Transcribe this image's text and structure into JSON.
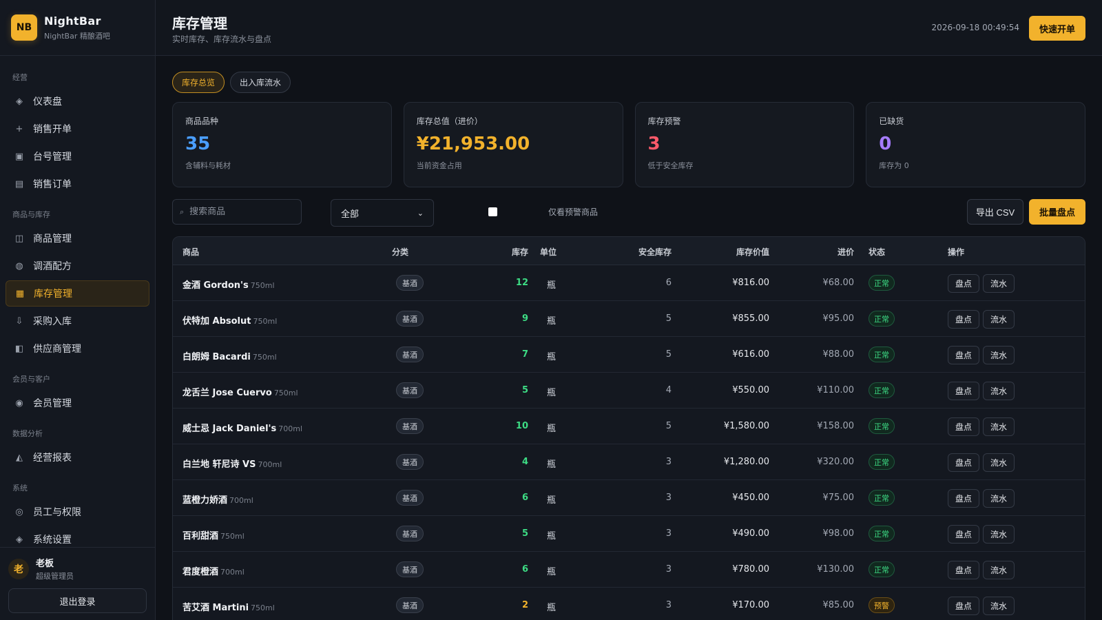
{
  "brand": {
    "logo": "NB",
    "name": "NightBar",
    "subtitle": "NightBar 精酿酒吧"
  },
  "sidebar": {
    "sections": [
      {
        "title": "经营",
        "items": [
          {
            "label": "仪表盘",
            "icon": "diamond-icon",
            "glyph": "◈"
          },
          {
            "label": "销售开单",
            "icon": "plus-icon",
            "glyph": "+"
          },
          {
            "label": "台号管理",
            "icon": "table-square-icon",
            "glyph": "▣"
          },
          {
            "label": "销售订单",
            "icon": "list-icon",
            "glyph": "▤"
          }
        ]
      },
      {
        "title": "商品与库存",
        "items": [
          {
            "label": "商品管理",
            "icon": "box-icon",
            "glyph": "◫"
          },
          {
            "label": "调酒配方",
            "icon": "mix-icon",
            "glyph": "◍"
          },
          {
            "label": "库存管理",
            "icon": "grid-icon",
            "glyph": "▦",
            "active": true
          },
          {
            "label": "采购入库",
            "icon": "download-icon",
            "glyph": "⇩"
          },
          {
            "label": "供应商管理",
            "icon": "supplier-icon",
            "glyph": "◧"
          }
        ]
      },
      {
        "title": "会员与客户",
        "items": [
          {
            "label": "会员管理",
            "icon": "member-icon",
            "glyph": "◉"
          }
        ]
      },
      {
        "title": "数据分析",
        "items": [
          {
            "label": "经营报表",
            "icon": "chart-icon",
            "glyph": "◭"
          }
        ]
      },
      {
        "title": "系统",
        "items": [
          {
            "label": "员工与权限",
            "icon": "staff-icon",
            "glyph": "◎"
          },
          {
            "label": "系统设置",
            "icon": "settings-icon",
            "glyph": "◈"
          }
        ]
      }
    ]
  },
  "user": {
    "avatar": "老",
    "name": "老板",
    "role": "超级管理员",
    "logout": "退出登录"
  },
  "header": {
    "title": "库存管理",
    "subtitle": "实时库存、库存流水与盘点",
    "datetime": "2026-09-18 00:49:54",
    "quick_button": "快速开单"
  },
  "tabs": [
    {
      "label": "库存总览",
      "active": true
    },
    {
      "label": "出入库流水",
      "active": false
    }
  ],
  "stats": [
    {
      "label": "商品品种",
      "value": "35",
      "note": "含辅料与耗材",
      "color": "#4a9eff"
    },
    {
      "label": "库存总值（进价）",
      "value": "¥21,953.00",
      "note": "当前资金占用",
      "color": "#f2b22c"
    },
    {
      "label": "库存预警",
      "value": "3",
      "note": "低于安全库存",
      "color": "#ff5a6a"
    },
    {
      "label": "已缺货",
      "value": "0",
      "note": "库存为 0",
      "color": "#a67cff"
    }
  ],
  "filters": {
    "search_placeholder": "搜索商品",
    "category_selected": "全部",
    "only_warning_label": "仅看预警商品",
    "export_label": "导出 CSV",
    "batch_label": "批量盘点"
  },
  "table": {
    "columns": [
      "商品",
      "分类",
      "库存",
      "单位",
      "安全库存",
      "库存价值",
      "进价",
      "状态",
      "操作"
    ],
    "actions": [
      "盘点",
      "流水"
    ],
    "rows": [
      {
        "name": "金酒 Gordon's",
        "spec": "750ml",
        "category": "基酒",
        "stock": "12",
        "unit": "瓶",
        "safe": "6",
        "value": "¥816.00",
        "price": "¥68.00",
        "status": "正常",
        "state": "ok"
      },
      {
        "name": "伏特加 Absolut",
        "spec": "750ml",
        "category": "基酒",
        "stock": "9",
        "unit": "瓶",
        "safe": "5",
        "value": "¥855.00",
        "price": "¥95.00",
        "status": "正常",
        "state": "ok"
      },
      {
        "name": "白朗姆 Bacardi",
        "spec": "750ml",
        "category": "基酒",
        "stock": "7",
        "unit": "瓶",
        "safe": "5",
        "value": "¥616.00",
        "price": "¥88.00",
        "status": "正常",
        "state": "ok"
      },
      {
        "name": "龙舌兰 Jose Cuervo",
        "spec": "750ml",
        "category": "基酒",
        "stock": "5",
        "unit": "瓶",
        "safe": "4",
        "value": "¥550.00",
        "price": "¥110.00",
        "status": "正常",
        "state": "ok"
      },
      {
        "name": "威士忌 Jack Daniel's",
        "spec": "700ml",
        "category": "基酒",
        "stock": "10",
        "unit": "瓶",
        "safe": "5",
        "value": "¥1,580.00",
        "price": "¥158.00",
        "status": "正常",
        "state": "ok"
      },
      {
        "name": "白兰地 轩尼诗 VS",
        "spec": "700ml",
        "category": "基酒",
        "stock": "4",
        "unit": "瓶",
        "safe": "3",
        "value": "¥1,280.00",
        "price": "¥320.00",
        "status": "正常",
        "state": "ok"
      },
      {
        "name": "蓝橙力娇酒",
        "spec": "700ml",
        "category": "基酒",
        "stock": "6",
        "unit": "瓶",
        "safe": "3",
        "value": "¥450.00",
        "price": "¥75.00",
        "status": "正常",
        "state": "ok"
      },
      {
        "name": "百利甜酒",
        "spec": "750ml",
        "category": "基酒",
        "stock": "5",
        "unit": "瓶",
        "safe": "3",
        "value": "¥490.00",
        "price": "¥98.00",
        "status": "正常",
        "state": "ok"
      },
      {
        "name": "君度橙酒",
        "spec": "700ml",
        "category": "基酒",
        "stock": "6",
        "unit": "瓶",
        "safe": "3",
        "value": "¥780.00",
        "price": "¥130.00",
        "status": "正常",
        "state": "ok"
      },
      {
        "name": "苦艾酒 Martini",
        "spec": "750ml",
        "category": "基酒",
        "stock": "2",
        "unit": "瓶",
        "safe": "3",
        "value": "¥170.00",
        "price": "¥85.00",
        "status": "预警",
        "state": "warn"
      }
    ]
  },
  "colors": {
    "accent": "#f2b22c",
    "ok": "#3ddc84",
    "warn": "#f2b22c",
    "background": "#0f1218"
  }
}
